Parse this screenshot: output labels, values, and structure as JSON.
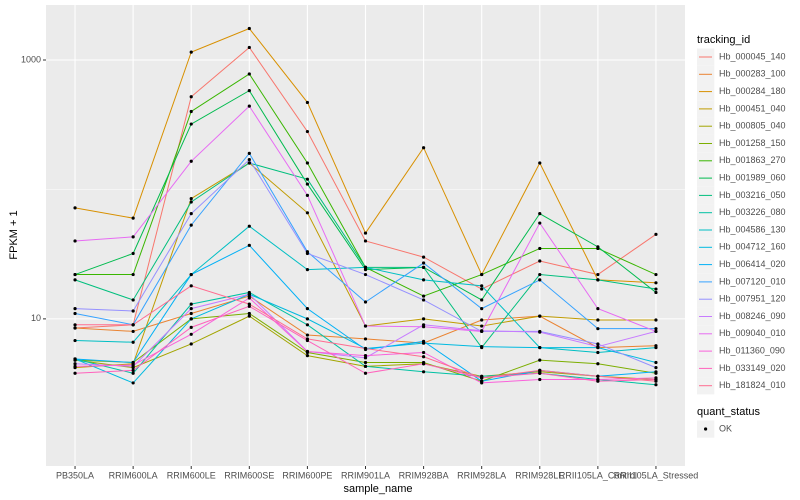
{
  "chart_data": {
    "type": "line",
    "x_label": "sample_name",
    "y_label": "FPKM + 1",
    "log_y": true,
    "grid": true,
    "categories": [
      "PB350LA",
      "RRIM600LA",
      "RRIM600LE",
      "RRIM600SE",
      "RRIM600PE",
      "RRIM901LA",
      "RRIM928BA",
      "RRIM928LA",
      "RRIM928LE",
      "RRII105LA_Control",
      "RRII105LA_Stressed"
    ],
    "ylim": [
      0.73,
      2660
    ],
    "yticks": [
      {
        "value": 10,
        "label": "10"
      },
      {
        "value": 1000,
        "label": "1000"
      }
    ],
    "legend_title": "tracking_id",
    "point_legend": {
      "title": "quant_status",
      "labels": [
        "OK"
      ]
    },
    "series": [
      {
        "name": "Hb_000045_140",
        "color": "#F8766D",
        "values": [
          8.5,
          9,
          520,
          1250,
          280,
          40,
          30,
          17,
          28,
          22,
          45
        ]
      },
      {
        "name": "Hb_000283_100",
        "color": "#EA8331",
        "values": [
          8.5,
          8,
          11,
          15,
          7.5,
          7,
          6.5,
          9.8,
          10.5,
          6,
          6.2
        ]
      },
      {
        "name": "Hb_000284_180",
        "color": "#D89000",
        "values": [
          72,
          60,
          1150,
          1750,
          470,
          46,
          210,
          22,
          160,
          20,
          19
        ]
      },
      {
        "name": "Hb_000451_040",
        "color": "#C09B00",
        "values": [
          4.2,
          4.5,
          85,
          160,
          66,
          8.8,
          10,
          8.8,
          10.5,
          9.8,
          9.8
        ]
      },
      {
        "name": "Hb_000805_040",
        "color": "#A3A500",
        "values": [
          4.8,
          4.2,
          6.4,
          10.5,
          5.2,
          4.3,
          4.5,
          3.6,
          3.9,
          3.6,
          3.4
        ]
      },
      {
        "name": "Hb_001258_150",
        "color": "#7CAE00",
        "values": [
          4.8,
          4.6,
          10,
          11,
          5.5,
          4.6,
          4.6,
          3.3,
          4.8,
          4.5,
          3.8
        ]
      },
      {
        "name": "Hb_001863_270",
        "color": "#39B600",
        "values": [
          22,
          22,
          400,
          780,
          160,
          25,
          15,
          22,
          35,
          35,
          22
        ]
      },
      {
        "name": "Hb_001989_060",
        "color": "#00BB4E",
        "values": [
          22,
          32,
          320,
          580,
          110,
          24,
          25,
          14,
          65,
          36,
          16
        ]
      },
      {
        "name": "Hb_003216_050",
        "color": "#00BF7D",
        "values": [
          20,
          14,
          80,
          160,
          120,
          25,
          25,
          6,
          22,
          20,
          17
        ]
      },
      {
        "name": "Hb_003226_080",
        "color": "#00C1A3",
        "values": [
          4.9,
          3.8,
          13,
          16,
          9,
          4.3,
          3.9,
          3.6,
          3.8,
          3.4,
          3.1
        ]
      },
      {
        "name": "Hb_004586_130",
        "color": "#00BFC4",
        "values": [
          6.8,
          6.6,
          22,
          52,
          24,
          25,
          20,
          18,
          6,
          5.5,
          6
        ]
      },
      {
        "name": "Hb_004712_160",
        "color": "#00BAE0",
        "values": [
          4.9,
          3.2,
          10,
          15.5,
          10,
          5.9,
          6.5,
          6.1,
          6,
          6,
          4.6
        ]
      },
      {
        "name": "Hb_006414_020",
        "color": "#00B0F6",
        "values": [
          4.9,
          4.6,
          22,
          37,
          12,
          5.8,
          6.7,
          3.3,
          4,
          3.6,
          3.9
        ]
      },
      {
        "name": "Hb_007120_010",
        "color": "#35A2FF",
        "values": [
          11,
          9,
          53,
          190,
          33,
          13.5,
          27,
          12,
          20,
          8.4,
          8.4
        ]
      },
      {
        "name": "Hb_007951_120",
        "color": "#9590FF",
        "values": [
          12,
          11.5,
          65,
          170,
          32,
          22,
          14,
          8,
          8,
          6.4,
          4.2
        ]
      },
      {
        "name": "Hb_008246_090",
        "color": "#C77CFF",
        "values": [
          4.5,
          4.3,
          12,
          15.5,
          5.6,
          5,
          9,
          8.1,
          7.9,
          6.1,
          8
        ]
      },
      {
        "name": "Hb_009040_010",
        "color": "#E76BF3",
        "values": [
          40,
          43,
          165,
          440,
          90,
          8.8,
          8.7,
          8,
          55,
          12,
          8
        ]
      },
      {
        "name": "Hb_011360_090",
        "color": "#FA62DB",
        "values": [
          4.3,
          4.4,
          7.6,
          14.5,
          5.6,
          5.2,
          5.5,
          3.2,
          3.4,
          3.4,
          3.5
        ]
      },
      {
        "name": "Hb_033149_020",
        "color": "#FF62BC",
        "values": [
          3.8,
          4,
          8.6,
          12.5,
          6.8,
          3.8,
          4.5,
          3.5,
          3.8,
          3.3,
          3.4
        ]
      },
      {
        "name": "Hb_181824_010",
        "color": "#FF6C90",
        "values": [
          9,
          9,
          18,
          13,
          7,
          5.9,
          5.1,
          3.5,
          4,
          3.6,
          3.3
        ]
      }
    ]
  }
}
